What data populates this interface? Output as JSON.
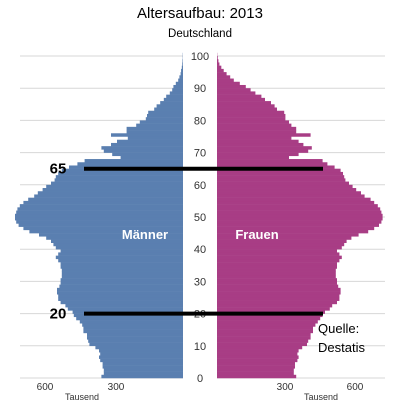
{
  "chart_data": {
    "type": "bar",
    "orientation": "horizontal-population-pyramid",
    "title": "Altersaufbau: 2013",
    "subtitle": "Deutschland",
    "unit_label": "Tausend",
    "age_axis": {
      "min": 0,
      "max": 100,
      "ticks": [
        "0",
        "10",
        "20",
        "30",
        "40",
        "50",
        "60",
        "70",
        "80",
        "90",
        "100"
      ]
    },
    "x_axis": {
      "max": 700,
      "tick_values": [
        600,
        300
      ],
      "tick_labels": [
        "600",
        "300"
      ]
    },
    "series": [
      {
        "name": "Männer",
        "color": "#5a7fb0",
        "values": [
          340,
          330,
          330,
          335,
          335,
          345,
          350,
          345,
          350,
          365,
          390,
          395,
          400,
          400,
          415,
          415,
          420,
          430,
          445,
          455,
          460,
          480,
          490,
          510,
          520,
          520,
          525,
          525,
          515,
          510,
          510,
          505,
          505,
          505,
          510,
          510,
          520,
          530,
          520,
          510,
          530,
          540,
          550,
          570,
          600,
          640,
          665,
          685,
          695,
          700,
          700,
          695,
          690,
          680,
          665,
          645,
          620,
          605,
          585,
          570,
          550,
          535,
          530,
          520,
          505,
          475,
          440,
          410,
          260,
          295,
          330,
          340,
          300,
          275,
          230,
          300,
          235,
          235,
          195,
          180,
          155,
          150,
          145,
          120,
          110,
          95,
          80,
          70,
          55,
          45,
          40,
          30,
          20,
          15,
          10,
          8,
          5,
          3,
          2,
          1,
          1
        ]
      },
      {
        "name": "Frauen",
        "color": "#a83d85",
        "values": [
          330,
          320,
          320,
          325,
          325,
          335,
          340,
          335,
          340,
          355,
          375,
          380,
          390,
          390,
          400,
          400,
          410,
          420,
          430,
          440,
          450,
          470,
          480,
          500,
          510,
          510,
          515,
          515,
          505,
          500,
          500,
          495,
          495,
          495,
          500,
          500,
          510,
          520,
          510,
          500,
          520,
          530,
          540,
          560,
          590,
          630,
          655,
          675,
          685,
          690,
          690,
          685,
          680,
          670,
          655,
          640,
          615,
          600,
          580,
          565,
          550,
          535,
          530,
          525,
          515,
          490,
          460,
          440,
          300,
          340,
          380,
          395,
          360,
          340,
          310,
          390,
          330,
          330,
          310,
          300,
          285,
          285,
          280,
          250,
          240,
          225,
          200,
          185,
          160,
          140,
          120,
          95,
          70,
          55,
          40,
          28,
          18,
          10,
          6,
          3,
          1
        ]
      }
    ],
    "annotations": [
      {
        "type": "horizontal-line",
        "age": 65,
        "label": "65"
      },
      {
        "type": "horizontal-line",
        "age": 20,
        "label": "20"
      },
      {
        "type": "text",
        "lines": [
          "Quelle:",
          "Destatis"
        ]
      }
    ]
  }
}
